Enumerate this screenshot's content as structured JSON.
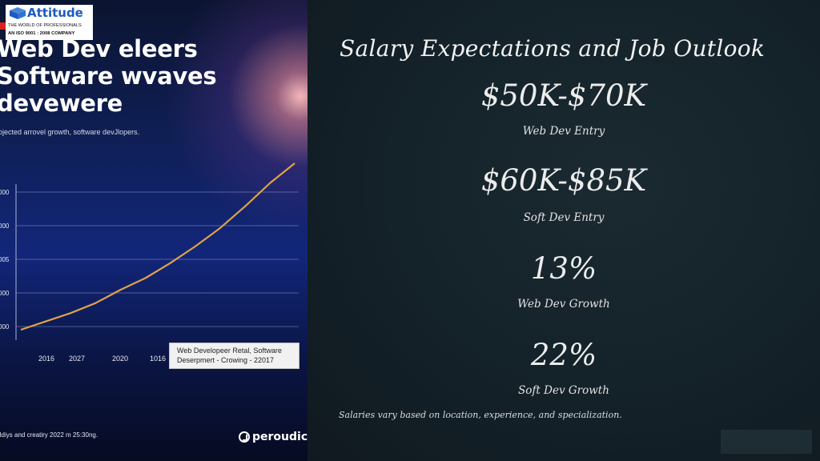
{
  "logo": {
    "brand": "Attitude",
    "tagline": "THE WORLD OF PROFESSIONALS",
    "certification": "AN ISO 9001 : 2008 COMPANY"
  },
  "left_image": {
    "headline": "Web  Dev eleers\nSoftware wvaves\ndevewere",
    "subtitle": "ojected arrovel growth, software devJlopers.",
    "footer_text": "lldiys and creatiry 2022 m 25:30ng.",
    "brand": "peroudic",
    "tooltip": {
      "line1": "Web Developeer Retal, Software",
      "line2": "Deserpmert  -  Crowing  -  22017"
    }
  },
  "chart_data": {
    "type": "line",
    "title": "",
    "xlabel": "",
    "ylabel": "",
    "y_tick_labels": [
      "000",
      "000",
      "005",
      "000",
      "000"
    ],
    "x_tick_labels": [
      "2016",
      "2027",
      "2020",
      "1016"
    ],
    "series": [
      {
        "values": [
          0.0,
          0.05,
          0.1,
          0.16,
          0.24,
          0.31,
          0.4,
          0.5,
          0.61,
          0.74,
          0.88,
          1.0
        ]
      }
    ],
    "line_color": "#e0a24a",
    "grid": true
  },
  "slide": {
    "title": "Salary Expectations and Job Outlook",
    "stats": [
      {
        "value": "$50K-$70K",
        "label": "Web Dev Entry"
      },
      {
        "value": "$60K-$85K",
        "label": "Soft Dev Entry"
      },
      {
        "value": "13%",
        "label": "Web Dev Growth"
      },
      {
        "value": "22%",
        "label": "Soft Dev Growth"
      }
    ],
    "note": "Salaries vary based on location, experience, and specialization."
  }
}
